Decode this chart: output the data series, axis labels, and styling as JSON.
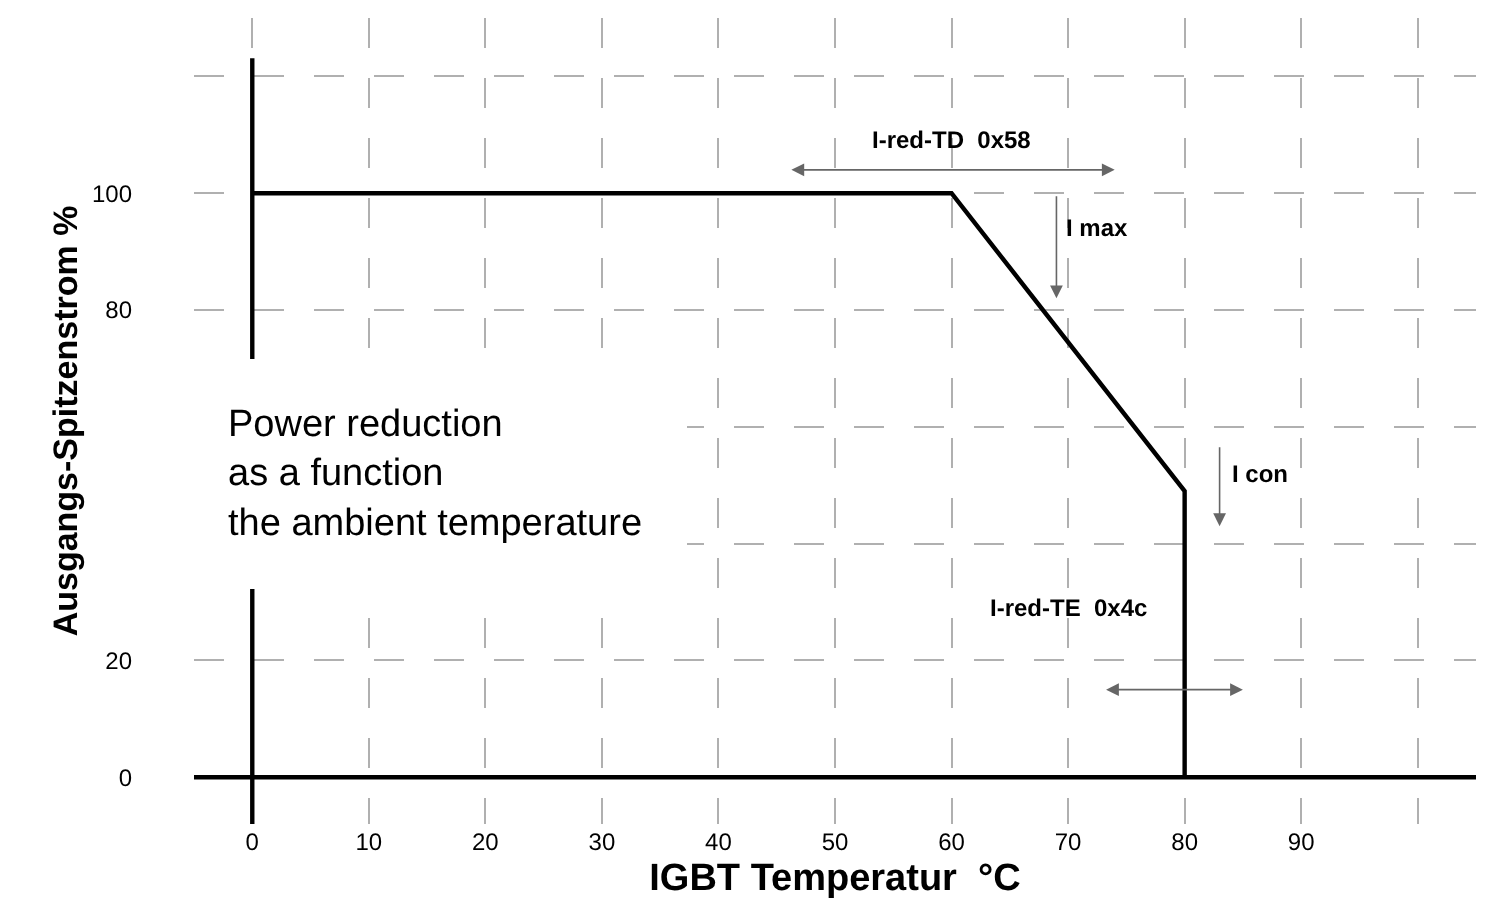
{
  "chart_data": {
    "type": "line",
    "xlabel": "IGBT Temperatur  °C",
    "ylabel": "Ausgangs-Spitzenstrom %",
    "x": [
      0,
      60,
      80,
      80
    ],
    "series": [
      {
        "color": "#000000",
        "values": [
          100,
          100,
          49,
          0
        ]
      }
    ],
    "xlim": [
      -5,
      105
    ],
    "ylim": [
      -8,
      130
    ],
    "xticks": [
      0,
      10,
      20,
      30,
      40,
      50,
      60,
      70,
      80,
      90,
      {
        "value": 100,
        "label": null
      }
    ],
    "yticks": [
      0,
      20,
      {
        "value": 40,
        "label": null
      },
      {
        "value": 60,
        "label": null
      },
      80,
      100,
      {
        "value": 120,
        "label": null
      }
    ],
    "grid": true,
    "marker": "none",
    "line_style": "solid",
    "annotations": [
      "I-red-TD  0x58",
      "I max",
      "I con",
      "I-red-TE  0x4c",
      "Power reduction\nas a function\nthe ambient temperature"
    ]
  }
}
